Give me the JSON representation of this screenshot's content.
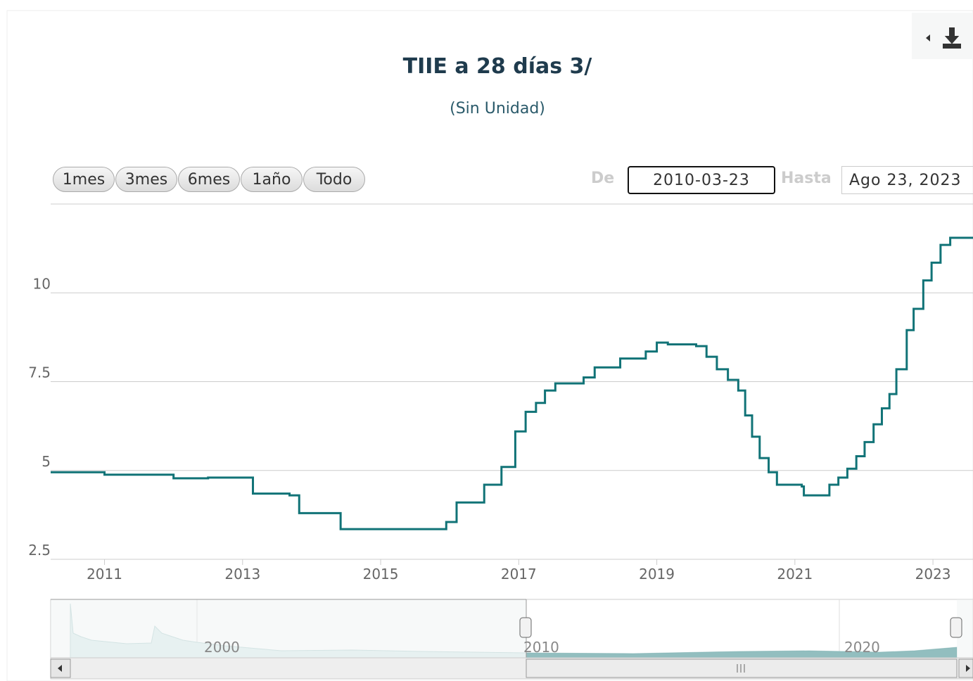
{
  "chart_data": {
    "type": "line",
    "title": "TIIE a 28 días 3/",
    "subtitle": "(Sin Unidad)",
    "step": true,
    "grid": true,
    "x": [
      2010.22,
      2011.0,
      2012.0,
      2012.5,
      2013.15,
      2013.68,
      2013.82,
      2014.42,
      2015.95,
      2016.1,
      2016.5,
      2016.75,
      2016.95,
      2017.1,
      2017.25,
      2017.38,
      2017.53,
      2017.94,
      2018.1,
      2018.47,
      2018.84,
      2019.0,
      2019.16,
      2019.57,
      2019.72,
      2019.87,
      2020.03,
      2020.18,
      2020.28,
      2020.38,
      2020.49,
      2020.62,
      2020.74,
      2021.1,
      2021.13,
      2021.45,
      2021.5,
      2021.63,
      2021.76,
      2021.89,
      2022.01,
      2022.14,
      2022.26,
      2022.37,
      2022.47,
      2022.62,
      2022.72,
      2022.86,
      2022.98,
      2023.11,
      2023.25,
      2023.58
    ],
    "series": [
      {
        "name": "TIIE a 28 días",
        "color": "#117377",
        "values": [
          4.95,
          4.88,
          4.78,
          4.8,
          4.35,
          4.3,
          3.8,
          3.35,
          3.55,
          4.1,
          4.6,
          5.1,
          6.1,
          6.65,
          6.9,
          7.25,
          7.45,
          7.62,
          7.9,
          8.15,
          8.35,
          8.6,
          8.55,
          8.5,
          8.2,
          7.85,
          7.55,
          7.25,
          6.55,
          5.95,
          5.35,
          4.95,
          4.6,
          4.55,
          4.3,
          4.3,
          4.6,
          4.8,
          5.05,
          5.4,
          5.8,
          6.3,
          6.75,
          7.15,
          7.85,
          8.95,
          9.55,
          10.35,
          10.85,
          11.35,
          11.55,
          11.55
        ]
      }
    ],
    "xlim": [
      2010.22,
      2023.58
    ],
    "xticks": [
      2011,
      2013,
      2015,
      2017,
      2019,
      2021,
      2023
    ],
    "ylim": [
      2.5,
      12.5
    ],
    "yticks": [
      2.5,
      5,
      7.5,
      10
    ]
  },
  "range_selector": {
    "buttons": [
      "1mes",
      "3mes",
      "6mes",
      "1año",
      "Todo"
    ],
    "from_label": "De",
    "from": "2010-03-23",
    "to_label": "Hasta",
    "to": "Ago 23, 2023"
  },
  "navigator": {
    "labels": [
      "2000",
      "2010",
      "2020"
    ]
  }
}
